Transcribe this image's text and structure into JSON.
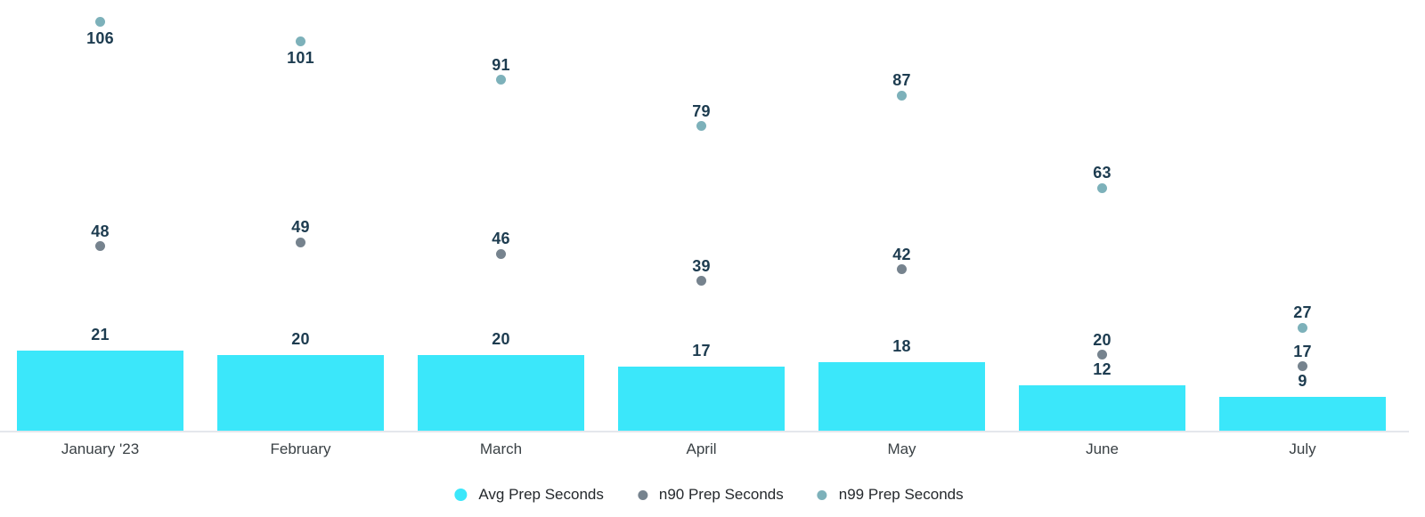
{
  "chart_data": {
    "type": "bar",
    "title": "",
    "xlabel": "",
    "ylabel": "",
    "categories": [
      "January '23",
      "February",
      "March",
      "April",
      "May",
      "June",
      "July"
    ],
    "series": [
      {
        "name": "Avg Prep Seconds",
        "type": "bar",
        "color": "#3BE7FA",
        "values": [
          21,
          20,
          20,
          17,
          18,
          12,
          9
        ]
      },
      {
        "name": "n90 Prep Seconds",
        "type": "scatter",
        "color": "#76838E",
        "values": [
          48,
          49,
          46,
          39,
          42,
          20,
          17
        ]
      },
      {
        "name": "n99 Prep Seconds",
        "type": "scatter",
        "color": "#7DB1BA",
        "values": [
          106,
          101,
          91,
          79,
          87,
          63,
          27
        ],
        "labels_below_point": [
          true,
          true,
          false,
          false,
          false,
          false,
          false
        ]
      }
    ],
    "ylim": [
      0,
      112
    ],
    "grid": false,
    "y_axis_visible": false,
    "x_axis_line_color": "#E4E7EC",
    "value_label_color": "#1D3C50",
    "axis_label_color": "#3A4145",
    "legend_text_color": "#24282C",
    "legend_position": "bottom",
    "background": "#FFFFFF"
  }
}
